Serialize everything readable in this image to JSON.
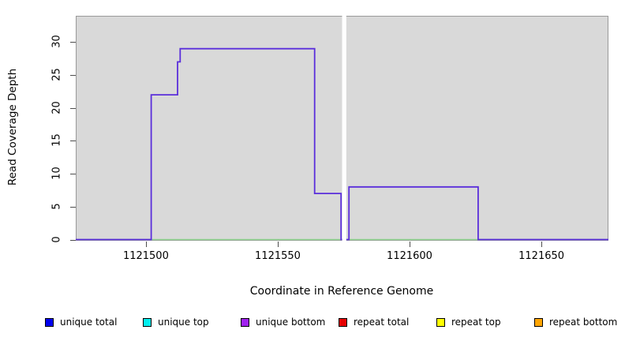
{
  "figure": {
    "kind": "R-style step plot of sequencing read coverage",
    "background": "#ffffff"
  },
  "chart_data": {
    "type": "line",
    "subtype": "step",
    "title": "",
    "xlabel": "Coordinate in Reference Genome",
    "ylabel": "Read Coverage Depth",
    "xlim": [
      1121473.4,
      1121675.4
    ],
    "ylim": [
      0,
      34
    ],
    "x_ticks": [
      1121500,
      1121550,
      1121600,
      1121650
    ],
    "y_ticks": [
      0,
      5,
      10,
      15,
      20,
      25,
      30
    ],
    "grid": false,
    "plot_bg": "#d9d9d9",
    "plot_border": "#9a9a9a",
    "tick_color": "#4d4d4d",
    "gap_region": {
      "x_start": 1121574.4,
      "x_end": 1121576.0,
      "color": "#ffffff"
    },
    "series": [
      {
        "name": "zero-baseline (overlapped top/repeat series at depth 0)",
        "color": "#8fd48f",
        "width": 1.5,
        "points": [
          [
            1121473.4,
            0
          ],
          [
            1121675.4,
            0
          ]
        ]
      },
      {
        "name": "unique bottom coverage",
        "color": "#5a2edb",
        "width": 1.8,
        "points": [
          [
            1121473.4,
            0
          ],
          [
            1121502,
            0
          ],
          [
            1121502,
            22
          ],
          [
            1121512,
            22
          ],
          [
            1121512,
            27
          ],
          [
            1121513,
            27
          ],
          [
            1121513,
            29
          ],
          [
            1121564,
            29
          ],
          [
            1121564,
            7
          ],
          [
            1121574,
            7
          ],
          [
            1121574,
            0
          ],
          [
            1121577,
            0
          ],
          [
            1121577,
            8
          ],
          [
            1121626,
            8
          ],
          [
            1121626,
            0
          ],
          [
            1121676,
            0
          ]
        ]
      }
    ],
    "legend_position": "bottom"
  },
  "legend": {
    "items": [
      {
        "label": "unique total",
        "color": "#0000ee"
      },
      {
        "label": "unique top",
        "color": "#00eeee"
      },
      {
        "label": "unique bottom",
        "color": "#a020f0"
      },
      {
        "label": "repeat total",
        "color": "#e60000"
      },
      {
        "label": "repeat top",
        "color": "#ffff00"
      },
      {
        "label": "repeat bottom",
        "color": "#ffa500"
      }
    ]
  }
}
